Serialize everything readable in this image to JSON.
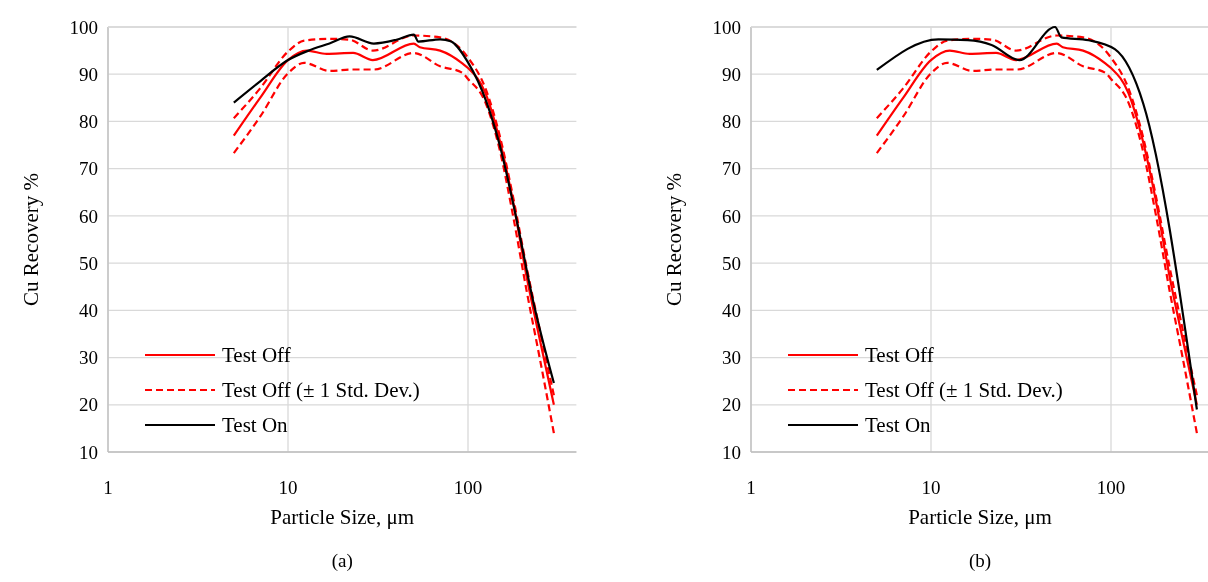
{
  "chart_data": [
    {
      "type": "line",
      "xlabel": "Particle Size, μm",
      "ylabel": "Cu Recovery %",
      "log": "x",
      "xlim": [
        1,
        400
      ],
      "xticks": [
        1,
        10,
        100
      ],
      "ylim": [
        10,
        100
      ],
      "yticks": [
        10,
        20,
        30,
        40,
        50,
        60,
        70,
        80,
        90,
        100
      ],
      "grid": true,
      "legend": "bottom left",
      "annotations": [
        "(a)"
      ],
      "series": [
        {
          "name": "Test Off",
          "color": "#ff0000",
          "line_style": "solid",
          "x": [
            5,
            7,
            10,
            12.7,
            16.4,
            23,
            29.6,
            50,
            54,
            70,
            93,
            100,
            125,
            150,
            178,
            212,
            250,
            300
          ],
          "values": [
            77,
            85,
            93,
            95,
            94.3,
            94.5,
            93,
            96.5,
            95.7,
            95,
            92.3,
            91.3,
            86,
            76,
            63,
            47,
            34,
            20
          ]
        },
        {
          "name": "Test Off (± 1 Std. Dev.)",
          "color": "#ff0000",
          "line_style": "dashed",
          "x": [
            5,
            7,
            10,
            12.3,
            17,
            22,
            29.6,
            50,
            70,
            93,
            100,
            125,
            150,
            178,
            212,
            250,
            300
          ],
          "values": [
            80.7,
            87,
            94.8,
            97.1,
            97.5,
            97.3,
            95,
            98.2,
            97.8,
            95,
            93.5,
            87,
            77,
            64,
            49,
            36,
            22
          ]
        },
        {
          "color": "#ff0000",
          "line_style": "dashed",
          "x": [
            5,
            7,
            10,
            12.3,
            17,
            23,
            30,
            50,
            70,
            93,
            100,
            125,
            150,
            178,
            212,
            250,
            300
          ],
          "values": [
            73.3,
            81,
            90.2,
            92.4,
            90.7,
            91,
            91,
            94.5,
            91.7,
            90.3,
            89,
            84,
            74,
            60,
            44,
            30,
            14
          ]
        },
        {
          "name": "Test On",
          "color": "#000000",
          "line_style": "solid",
          "x": [
            5,
            7,
            10,
            13,
            17,
            22,
            30,
            40,
            50,
            53,
            70,
            80,
            100,
            127,
            150,
            182,
            230,
            300
          ],
          "values": [
            84,
            88.5,
            93,
            95,
            96.5,
            98,
            96.5,
            97.3,
            98.4,
            96.9,
            97.4,
            97,
            92.5,
            84,
            75,
            61,
            42,
            24.6
          ]
        }
      ]
    },
    {
      "type": "line",
      "xlabel": "Particle Size, μm",
      "ylabel": "Cu Recovery %",
      "log": "x",
      "xlim": [
        1,
        350
      ],
      "xticks": [
        1,
        10,
        100
      ],
      "ylim": [
        10,
        100
      ],
      "yticks": [
        10,
        20,
        30,
        40,
        50,
        60,
        70,
        80,
        90,
        100
      ],
      "grid": true,
      "legend": "bottom left",
      "annotations": [
        "(b)"
      ],
      "series": [
        {
          "name": "Test Off",
          "color": "#ff0000",
          "line_style": "solid",
          "x": [
            5,
            7,
            10,
            12.7,
            16.4,
            23,
            29.6,
            50,
            54,
            70,
            93,
            100,
            125,
            150,
            178,
            212,
            250,
            300
          ],
          "values": [
            77,
            85,
            93,
            95,
            94.3,
            94.5,
            93,
            96.5,
            95.7,
            95,
            92.3,
            91.3,
            86,
            76,
            63,
            47,
            34,
            20
          ]
        },
        {
          "name": "Test Off (± 1 Std. Dev.)",
          "color": "#ff0000",
          "line_style": "dashed",
          "x": [
            5,
            7,
            10,
            12.3,
            17,
            22,
            29.6,
            50,
            70,
            93,
            100,
            125,
            150,
            178,
            212,
            250,
            300
          ],
          "values": [
            80.7,
            87,
            94.8,
            97.1,
            97.5,
            97.3,
            95,
            98.2,
            97.8,
            95,
            93.5,
            87,
            77,
            64,
            49,
            36,
            22
          ]
        },
        {
          "color": "#ff0000",
          "line_style": "dashed",
          "x": [
            5,
            7,
            10,
            12.3,
            17,
            23,
            30,
            50,
            70,
            93,
            100,
            125,
            150,
            178,
            212,
            250,
            300
          ],
          "values": [
            73.3,
            81,
            90.2,
            92.4,
            90.7,
            91,
            91,
            94.5,
            91.7,
            90.3,
            89,
            84,
            74,
            60,
            44,
            30,
            14
          ]
        },
        {
          "name": "Test On",
          "color": "#000000",
          "line_style": "solid",
          "x": [
            5,
            11,
            16,
            21.7,
            31,
            48.9,
            53,
            75,
            105,
            151,
            300
          ],
          "values": [
            90.9,
            97.4,
            97.2,
            96.2,
            93,
            100,
            97.8,
            97.2,
            95.3,
            83.8,
            19
          ]
        }
      ]
    }
  ]
}
